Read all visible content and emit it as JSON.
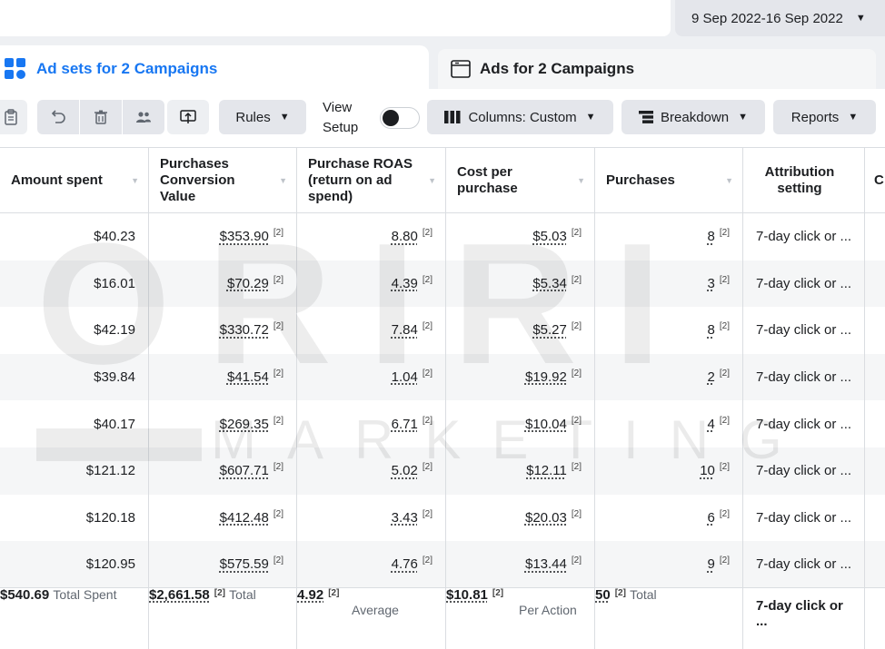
{
  "header": {
    "date_range": "9 Sep 2022-16 Sep 2022"
  },
  "tabs": {
    "active": "Ad sets for 2 Campaigns",
    "inactive": "Ads for 2 Campaigns"
  },
  "toolbar": {
    "rules": "Rules",
    "view_setup": "View\nSetup",
    "columns": "Columns: Custom",
    "breakdown": "Breakdown",
    "reports": "Reports"
  },
  "table": {
    "headers": [
      "Amount spent",
      "Purchases Conversion Value",
      "Purchase ROAS (return on ad spend)",
      "Cost per purchase",
      "Purchases",
      "Attribution setting",
      "C"
    ],
    "rows": [
      {
        "spent": "$40.23",
        "value": "$353.90",
        "roas": "8.80",
        "cpp": "$5.03",
        "purchases": "8",
        "attr": "7-day click or ..."
      },
      {
        "spent": "$16.01",
        "value": "$70.29",
        "roas": "4.39",
        "cpp": "$5.34",
        "purchases": "3",
        "attr": "7-day click or ..."
      },
      {
        "spent": "$42.19",
        "value": "$330.72",
        "roas": "7.84",
        "cpp": "$5.27",
        "purchases": "8",
        "attr": "7-day click or ..."
      },
      {
        "spent": "$39.84",
        "value": "$41.54",
        "roas": "1.04",
        "cpp": "$19.92",
        "purchases": "2",
        "attr": "7-day click or ..."
      },
      {
        "spent": "$40.17",
        "value": "$269.35",
        "roas": "6.71",
        "cpp": "$10.04",
        "purchases": "4",
        "attr": "7-day click or ..."
      },
      {
        "spent": "$121.12",
        "value": "$607.71",
        "roas": "5.02",
        "cpp": "$12.11",
        "purchases": "10",
        "attr": "7-day click or ..."
      },
      {
        "spent": "$120.18",
        "value": "$412.48",
        "roas": "3.43",
        "cpp": "$20.03",
        "purchases": "6",
        "attr": "7-day click or ..."
      },
      {
        "spent": "$120.95",
        "value": "$575.59",
        "roas": "4.76",
        "cpp": "$13.44",
        "purchases": "9",
        "attr": "7-day click or ..."
      }
    ],
    "sup": "[2]",
    "totals": {
      "spent": "$540.69",
      "spent_sub": "Total Spent",
      "value": "$2,661.58",
      "value_sub": "Total",
      "roas": "4.92",
      "roas_sub": "Average",
      "cpp": "$10.81",
      "cpp_sub": "Per Action",
      "purchases": "50",
      "purchases_sub": "Total",
      "attr": "7-day click or ..."
    }
  },
  "watermark": {
    "big": "ORIRI",
    "small": "MARKETING"
  },
  "colors": {
    "accent": "#1877f2",
    "text": "#1c1e21",
    "muted": "#606770",
    "grid": "#dadde1"
  },
  "icons": [
    "grid-icon",
    "window-icon",
    "clipboard-icon",
    "undo-icon",
    "trash-icon",
    "people-icon",
    "preview-icon",
    "caret-down-icon",
    "columns-icon",
    "breakdown-icon"
  ]
}
